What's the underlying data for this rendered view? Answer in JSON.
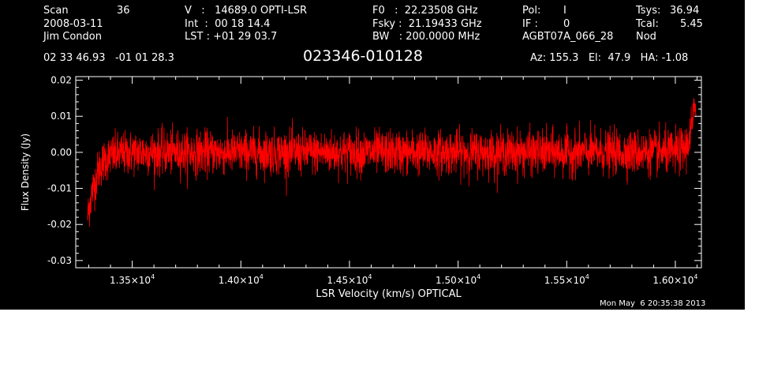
{
  "header": {
    "col1": {
      "scan_label": "Scan",
      "scan_value": "36",
      "date": "2008-03-11",
      "observer": "Jim Condon"
    },
    "col2": {
      "v_line": "V   :   14689.0 OPTI-LSR",
      "int_line": "Int  :  00 18 14.4",
      "lst_line": "LST : +01 29 03.7"
    },
    "col3": {
      "f0_line": "F0   :  22.23508 GHz",
      "fsky_line": "Fsky :  21.19433 GHz",
      "bw_line": "BW   : 200.0000 MHz"
    },
    "col4": {
      "pol_label": "Pol:",
      "pol_value": "I",
      "if_label": "IF :",
      "if_value": "0",
      "project": "AGBT07A_066_28"
    },
    "col5": {
      "tsys_label": "Tsys:",
      "tsys_value": "36.94",
      "tcal_label": "Tcal:",
      "tcal_value": "5.45",
      "mode": "Nod"
    },
    "coords": "02 33 46.93   -01 01 28.3",
    "source": "023346-010128",
    "azel": "Az: 155.3   El:  47.9   HA: -1.08",
    "timestamp": "Mon May  6 20:35:38 2013"
  },
  "colors": {
    "background": "#000000",
    "axes": "#ffffff",
    "trace": "#ff0000"
  },
  "chart_data": {
    "type": "line",
    "title": "023346-010128",
    "xlabel": "LSR Velocity (km/s) OPTICAL",
    "ylabel": "Flux Density (Jy)",
    "xlim": [
      13240,
      16120
    ],
    "ylim": [
      -0.032,
      0.021
    ],
    "x_ticks": [
      {
        "value": 13500,
        "mantissa": "1.35",
        "exponent": "4"
      },
      {
        "value": 14000,
        "mantissa": "1.40",
        "exponent": "4"
      },
      {
        "value": 14500,
        "mantissa": "1.45",
        "exponent": "4"
      },
      {
        "value": 15000,
        "mantissa": "1.50",
        "exponent": "4"
      },
      {
        "value": 15500,
        "mantissa": "1.55",
        "exponent": "4"
      },
      {
        "value": 16000,
        "mantissa": "1.60",
        "exponent": "4"
      }
    ],
    "y_ticks": [
      {
        "value": 0.02,
        "label": "0.02"
      },
      {
        "value": 0.01,
        "label": "0.01"
      },
      {
        "value": 0.0,
        "label": "0.00"
      },
      {
        "value": -0.01,
        "label": "-0.01"
      },
      {
        "value": -0.02,
        "label": "-0.02"
      },
      {
        "value": -0.03,
        "label": "-0.03"
      }
    ],
    "series": [
      {
        "x": [
          13295,
          13305,
          13315,
          13330,
          13350,
          13375,
          13400,
          13450,
          13500,
          13600,
          13700,
          13800,
          13900,
          14000,
          14100,
          14200,
          14300,
          14400,
          14500,
          14600,
          14700,
          14800,
          14900,
          15000,
          15100,
          15200,
          15300,
          15400,
          15500,
          15600,
          15700,
          15800,
          15900,
          15950,
          16000,
          16020,
          16040,
          16055,
          16065,
          16075,
          16085,
          16090,
          16095
        ],
        "y": [
          -0.018,
          -0.014,
          -0.011,
          -0.008,
          -0.004,
          -0.002,
          -0.001,
          -0.0005,
          0.0,
          0.0,
          0.0,
          0.0,
          0.0,
          0.0,
          0.0,
          0.0,
          0.0,
          0.0,
          0.0,
          0.0,
          0.0,
          0.0,
          0.0,
          0.0,
          0.0,
          0.0,
          0.0,
          0.0,
          0.0,
          0.0,
          0.0,
          0.0,
          0.0,
          0.0,
          0.0,
          0.0005,
          0.001,
          0.002,
          0.004,
          0.007,
          0.01,
          0.013,
          0.015
        ],
        "noise_rms": 0.003
      }
    ]
  }
}
